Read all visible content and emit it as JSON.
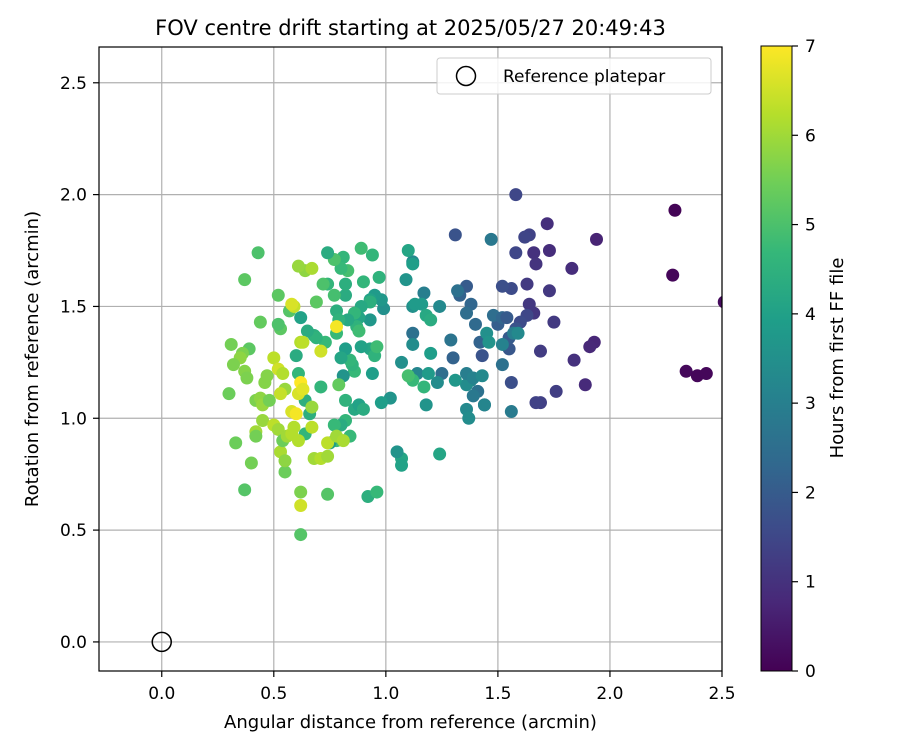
{
  "chart_data": {
    "type": "scatter",
    "title": "FOV centre drift starting at 2025/05/27 20:49:43",
    "xlabel": "Angular distance from reference (arcmin)",
    "ylabel": "Rotation from reference (arcmin)",
    "xlim": [
      -0.28,
      2.5
    ],
    "ylim": [
      -0.13,
      2.66
    ],
    "xticks": [
      0.0,
      0.5,
      1.0,
      1.5,
      2.0,
      2.5
    ],
    "xtick_labels": [
      "0.0",
      "0.5",
      "1.0",
      "1.5",
      "2.0",
      "2.5"
    ],
    "yticks": [
      0.0,
      0.5,
      1.0,
      1.5,
      2.0,
      2.5
    ],
    "ytick_labels": [
      "0.0",
      "0.5",
      "1.0",
      "1.5",
      "2.0",
      "2.5"
    ],
    "grid": true,
    "legend": {
      "placement": "top-right",
      "entries": [
        "Reference platepar"
      ]
    },
    "reference_point": {
      "x": 0.0,
      "y": 0.0,
      "marker": "open-circle",
      "label": "Reference platepar"
    },
    "colorbar": {
      "label": "Hours from first FF file",
      "range": [
        0,
        7
      ],
      "ticks": [
        0,
        1,
        2,
        3,
        4,
        5,
        6,
        7
      ],
      "tick_labels": [
        "0",
        "1",
        "2",
        "3",
        "4",
        "5",
        "6",
        "7"
      ],
      "colormap": "viridis",
      "colors": [
        "#440154",
        "#482878",
        "#3e4989",
        "#31688e",
        "#26828e",
        "#1f9e89",
        "#35b779",
        "#6ece58",
        "#b5de2b",
        "#fde725"
      ]
    },
    "point_columns": [
      "x",
      "y",
      "hours"
    ],
    "points": [
      [
        2.29,
        1.93,
        0.05
      ],
      [
        2.28,
        1.64,
        0.1
      ],
      [
        2.34,
        1.21,
        0.15
      ],
      [
        2.39,
        1.19,
        0.1
      ],
      [
        2.43,
        1.2,
        0.12
      ],
      [
        2.51,
        1.52,
        0.2
      ],
      [
        1.94,
        1.8,
        0.7
      ],
      [
        1.93,
        1.34,
        0.75
      ],
      [
        1.91,
        1.32,
        0.8
      ],
      [
        1.89,
        1.15,
        0.85
      ],
      [
        1.83,
        1.67,
        0.9
      ],
      [
        1.84,
        1.26,
        1.0
      ],
      [
        1.72,
        1.87,
        0.95
      ],
      [
        1.73,
        1.75,
        0.9
      ],
      [
        1.66,
        1.74,
        1.0
      ],
      [
        1.67,
        1.69,
        1.05
      ],
      [
        1.73,
        1.57,
        1.15
      ],
      [
        1.75,
        1.43,
        1.2
      ],
      [
        1.69,
        1.3,
        1.25
      ],
      [
        1.76,
        1.12,
        1.3
      ],
      [
        1.69,
        1.07,
        1.35
      ],
      [
        1.67,
        1.07,
        1.4
      ],
      [
        1.66,
        1.47,
        1.1
      ],
      [
        1.64,
        1.51,
        1.15
      ],
      [
        1.63,
        1.6,
        1.2
      ],
      [
        1.58,
        2.0,
        1.5
      ],
      [
        1.64,
        1.82,
        1.4
      ],
      [
        1.62,
        1.81,
        1.45
      ],
      [
        1.58,
        1.74,
        1.5
      ],
      [
        1.56,
        1.58,
        1.6
      ],
      [
        1.63,
        1.46,
        1.5
      ],
      [
        1.6,
        1.43,
        1.6
      ],
      [
        1.58,
        1.4,
        1.8
      ],
      [
        1.56,
        1.16,
        1.7
      ],
      [
        1.55,
        1.31,
        1.9
      ],
      [
        1.55,
        1.36,
        2.0
      ],
      [
        1.52,
        1.59,
        1.7
      ],
      [
        1.5,
        1.42,
        2.1
      ],
      [
        1.48,
        1.46,
        2.5
      ],
      [
        1.47,
        1.8,
        2.8
      ],
      [
        1.52,
        1.45,
        2.3
      ],
      [
        1.54,
        1.45,
        2.0
      ],
      [
        1.56,
        1.03,
        2.9
      ],
      [
        1.52,
        1.24,
        2.6
      ],
      [
        1.44,
        1.06,
        2.2
      ],
      [
        1.43,
        1.28,
        1.8
      ],
      [
        1.42,
        1.34,
        2.2
      ],
      [
        1.4,
        1.42,
        2.4
      ],
      [
        1.41,
        1.12,
        2.6
      ],
      [
        1.38,
        1.51,
        2.3
      ],
      [
        1.36,
        1.59,
        2.0
      ],
      [
        1.36,
        1.47,
        2.5
      ],
      [
        1.33,
        1.55,
        2.2
      ],
      [
        1.31,
        1.82,
        1.8
      ],
      [
        1.32,
        1.57,
        2.6
      ],
      [
        1.29,
        1.35,
        2.7
      ],
      [
        1.3,
        1.27,
        2.2
      ],
      [
        1.25,
        1.2,
        2.5
      ],
      [
        1.39,
        1.1,
        2.8
      ],
      [
        1.38,
        1.17,
        3.2
      ],
      [
        1.36,
        1.15,
        3.4
      ],
      [
        1.36,
        1.2,
        3.0
      ],
      [
        1.39,
        1.18,
        3.1
      ],
      [
        1.36,
        1.04,
        3.3
      ],
      [
        1.37,
        1.0,
        3.4
      ],
      [
        1.43,
        1.19,
        3.3
      ],
      [
        1.44,
        1.06,
        3.2
      ],
      [
        1.45,
        1.38,
        3.5
      ],
      [
        1.46,
        1.34,
        3.6
      ],
      [
        1.52,
        1.33,
        3.1
      ],
      [
        1.57,
        1.38,
        3.0
      ],
      [
        1.59,
        1.38,
        3.3
      ],
      [
        1.24,
        1.5,
        3.3
      ],
      [
        1.23,
        1.16,
        3.4
      ],
      [
        1.31,
        1.17,
        3.7
      ],
      [
        1.12,
        1.5,
        3.5
      ],
      [
        1.17,
        1.56,
        3.0
      ],
      [
        1.12,
        1.38,
        2.6
      ],
      [
        1.14,
        1.2,
        3.2
      ],
      [
        1.12,
        1.33,
        3.4
      ],
      [
        1.07,
        1.25,
        3.5
      ],
      [
        1.09,
        1.62,
        3.6
      ],
      [
        1.12,
        1.7,
        3.3
      ],
      [
        1.12,
        1.69,
        3.9
      ],
      [
        1.1,
        1.75,
        4.1
      ],
      [
        1.13,
        1.51,
        3.8
      ],
      [
        1.16,
        1.51,
        3.8
      ],
      [
        1.18,
        1.46,
        4.2
      ],
      [
        1.2,
        1.44,
        4.3
      ],
      [
        1.18,
        1.06,
        3.6
      ],
      [
        1.19,
        1.2,
        3.8
      ],
      [
        1.2,
        1.29,
        3.9
      ],
      [
        1.24,
        0.84,
        4.1
      ],
      [
        1.17,
        1.14,
        4.6
      ],
      [
        1.12,
        1.17,
        4.7
      ],
      [
        1.1,
        1.19,
        4.9
      ],
      [
        1.07,
        0.82,
        4.1
      ],
      [
        1.07,
        0.79,
        4.0
      ],
      [
        1.05,
        0.85,
        3.6
      ],
      [
        1.02,
        1.09,
        3.6
      ],
      [
        0.98,
        1.07,
        3.9
      ],
      [
        0.99,
        1.49,
        3.5
      ],
      [
        0.98,
        1.53,
        3.7
      ],
      [
        0.97,
        1.63,
        4.5
      ],
      [
        0.95,
        1.55,
        3.8
      ],
      [
        0.94,
        1.73,
        4.6
      ],
      [
        0.93,
        1.53,
        4.0
      ],
      [
        0.93,
        1.44,
        3.7
      ],
      [
        0.93,
        1.31,
        4.1
      ],
      [
        0.94,
        1.2,
        3.9
      ],
      [
        0.95,
        1.28,
        4.5
      ],
      [
        0.96,
        1.32,
        4.8
      ],
      [
        0.93,
        1.52,
        4.4
      ],
      [
        0.89,
        1.76,
        4.8
      ],
      [
        0.9,
        1.61,
        4.6
      ],
      [
        0.89,
        1.5,
        4.2
      ],
      [
        0.88,
        1.45,
        4.1
      ],
      [
        0.86,
        1.47,
        4.6
      ],
      [
        0.87,
        1.41,
        4.5
      ],
      [
        0.88,
        1.39,
        4.8
      ],
      [
        0.89,
        1.32,
        4.0
      ],
      [
        0.86,
        1.21,
        4.7
      ],
      [
        0.85,
        1.24,
        4.5
      ],
      [
        0.84,
        1.26,
        4.6
      ],
      [
        0.82,
        1.31,
        3.9
      ],
      [
        0.8,
        1.27,
        4.1
      ],
      [
        0.81,
        1.19,
        3.6
      ],
      [
        0.83,
        1.44,
        4.2
      ],
      [
        0.82,
        1.55,
        4.3
      ],
      [
        0.82,
        1.6,
        4.4
      ],
      [
        0.83,
        1.66,
        4.9
      ],
      [
        0.81,
        1.72,
        4.6
      ],
      [
        0.8,
        1.67,
        4.7
      ],
      [
        0.77,
        1.71,
        5.0
      ],
      [
        0.74,
        1.74,
        4.3
      ],
      [
        0.74,
        1.6,
        4.6
      ],
      [
        0.72,
        1.6,
        5.0
      ],
      [
        0.77,
        1.55,
        4.9
      ],
      [
        0.78,
        1.48,
        4.4
      ],
      [
        0.79,
        1.44,
        4.5
      ],
      [
        0.78,
        1.38,
        4.7
      ],
      [
        0.73,
        1.34,
        4.7
      ],
      [
        0.71,
        1.14,
        4.6
      ],
      [
        0.79,
        1.15,
        5.3
      ],
      [
        0.82,
        1.08,
        4.5
      ],
      [
        0.86,
        1.04,
        4.2
      ],
      [
        0.88,
        1.06,
        4.0
      ],
      [
        0.9,
        1.04,
        4.3
      ],
      [
        0.82,
        0.99,
        4.6
      ],
      [
        0.84,
        0.92,
        4.7
      ],
      [
        0.8,
        0.97,
        4.3
      ],
      [
        0.78,
        0.9,
        4.8
      ],
      [
        0.75,
        0.89,
        3.9
      ],
      [
        0.77,
        0.97,
        4.7
      ],
      [
        0.92,
        0.65,
        4.4
      ],
      [
        0.96,
        0.67,
        4.7
      ],
      [
        0.74,
        0.66,
        5.1
      ],
      [
        0.64,
        0.93,
        4.6
      ],
      [
        0.66,
        1.02,
        4.4
      ],
      [
        0.64,
        1.08,
        4.4
      ],
      [
        0.61,
        1.2,
        4.6
      ],
      [
        0.6,
        1.28,
        4.3
      ],
      [
        0.68,
        1.37,
        4.4
      ],
      [
        0.69,
        1.36,
        4.5
      ],
      [
        0.65,
        1.39,
        4.3
      ],
      [
        0.62,
        1.45,
        4.0
      ],
      [
        0.69,
        1.52,
        5.2
      ],
      [
        0.64,
        1.66,
        5.8
      ],
      [
        0.61,
        1.68,
        5.9
      ],
      [
        0.57,
        1.48,
        5.1
      ],
      [
        0.52,
        1.55,
        5.2
      ],
      [
        0.53,
        1.4,
        5.2
      ],
      [
        0.52,
        1.42,
        5.0
      ],
      [
        0.44,
        1.43,
        5.3
      ],
      [
        0.43,
        1.74,
        5.0
      ],
      [
        0.37,
        1.62,
        5.2
      ],
      [
        0.39,
        1.31,
        5.2
      ],
      [
        0.31,
        1.33,
        5.5
      ],
      [
        0.36,
        1.29,
        5.6
      ],
      [
        0.35,
        1.27,
        5.8
      ],
      [
        0.32,
        1.24,
        5.6
      ],
      [
        0.37,
        1.21,
        5.7
      ],
      [
        0.38,
        1.18,
        5.6
      ],
      [
        0.3,
        1.11,
        5.4
      ],
      [
        0.33,
        0.89,
        5.4
      ],
      [
        0.37,
        0.68,
        5.1
      ],
      [
        0.42,
        0.94,
        6.0
      ],
      [
        0.42,
        1.08,
        5.6
      ],
      [
        0.44,
        1.09,
        5.8
      ],
      [
        0.45,
        1.06,
        5.9
      ],
      [
        0.46,
        1.16,
        5.7
      ],
      [
        0.47,
        1.19,
        5.7
      ],
      [
        0.48,
        1.08,
        5.5
      ],
      [
        0.45,
        0.99,
        5.9
      ],
      [
        0.42,
        0.92,
        5.5
      ],
      [
        0.4,
        0.8,
        5.5
      ],
      [
        0.5,
        0.97,
        6.3
      ],
      [
        0.52,
        0.95,
        6.0
      ],
      [
        0.53,
        0.85,
        6.1
      ],
      [
        0.54,
        0.9,
        5.4
      ],
      [
        0.55,
        0.76,
        5.4
      ],
      [
        0.56,
        0.92,
        6.0
      ],
      [
        0.58,
        0.93,
        6.2
      ],
      [
        0.59,
        0.96,
        6.2
      ],
      [
        0.58,
        1.03,
        6.6
      ],
      [
        0.6,
        1.02,
        6.9
      ],
      [
        0.61,
        1.11,
        6.6
      ],
      [
        0.62,
        1.16,
        7.0
      ],
      [
        0.63,
        1.13,
        6.7
      ],
      [
        0.61,
        0.9,
        6.2
      ],
      [
        0.62,
        0.61,
        6.5
      ],
      [
        0.62,
        0.67,
        5.6
      ],
      [
        0.62,
        0.48,
        5.1
      ],
      [
        0.5,
        1.27,
        6.3
      ],
      [
        0.52,
        1.22,
        6.5
      ],
      [
        0.54,
        1.2,
        6.2
      ],
      [
        0.55,
        1.13,
        5.9
      ],
      [
        0.53,
        1.11,
        6.4
      ],
      [
        0.59,
        1.5,
        6.4
      ],
      [
        0.62,
        1.34,
        6.2
      ],
      [
        0.63,
        1.34,
        6.3
      ],
      [
        0.67,
        1.05,
        5.9
      ],
      [
        0.67,
        0.96,
        6.3
      ],
      [
        0.68,
        0.82,
        6.0
      ],
      [
        0.71,
        1.3,
        6.5
      ],
      [
        0.74,
        0.89,
        6.3
      ],
      [
        0.78,
        1.41,
        6.9
      ],
      [
        0.78,
        0.92,
        6.0
      ],
      [
        0.81,
        0.9,
        6.1
      ],
      [
        0.67,
        1.67,
        6.1
      ],
      [
        0.58,
        1.51,
        6.6
      ],
      [
        0.71,
        0.82,
        6.2
      ],
      [
        0.74,
        0.83,
        6.0
      ],
      [
        0.55,
        0.81,
        5.8
      ]
    ]
  }
}
